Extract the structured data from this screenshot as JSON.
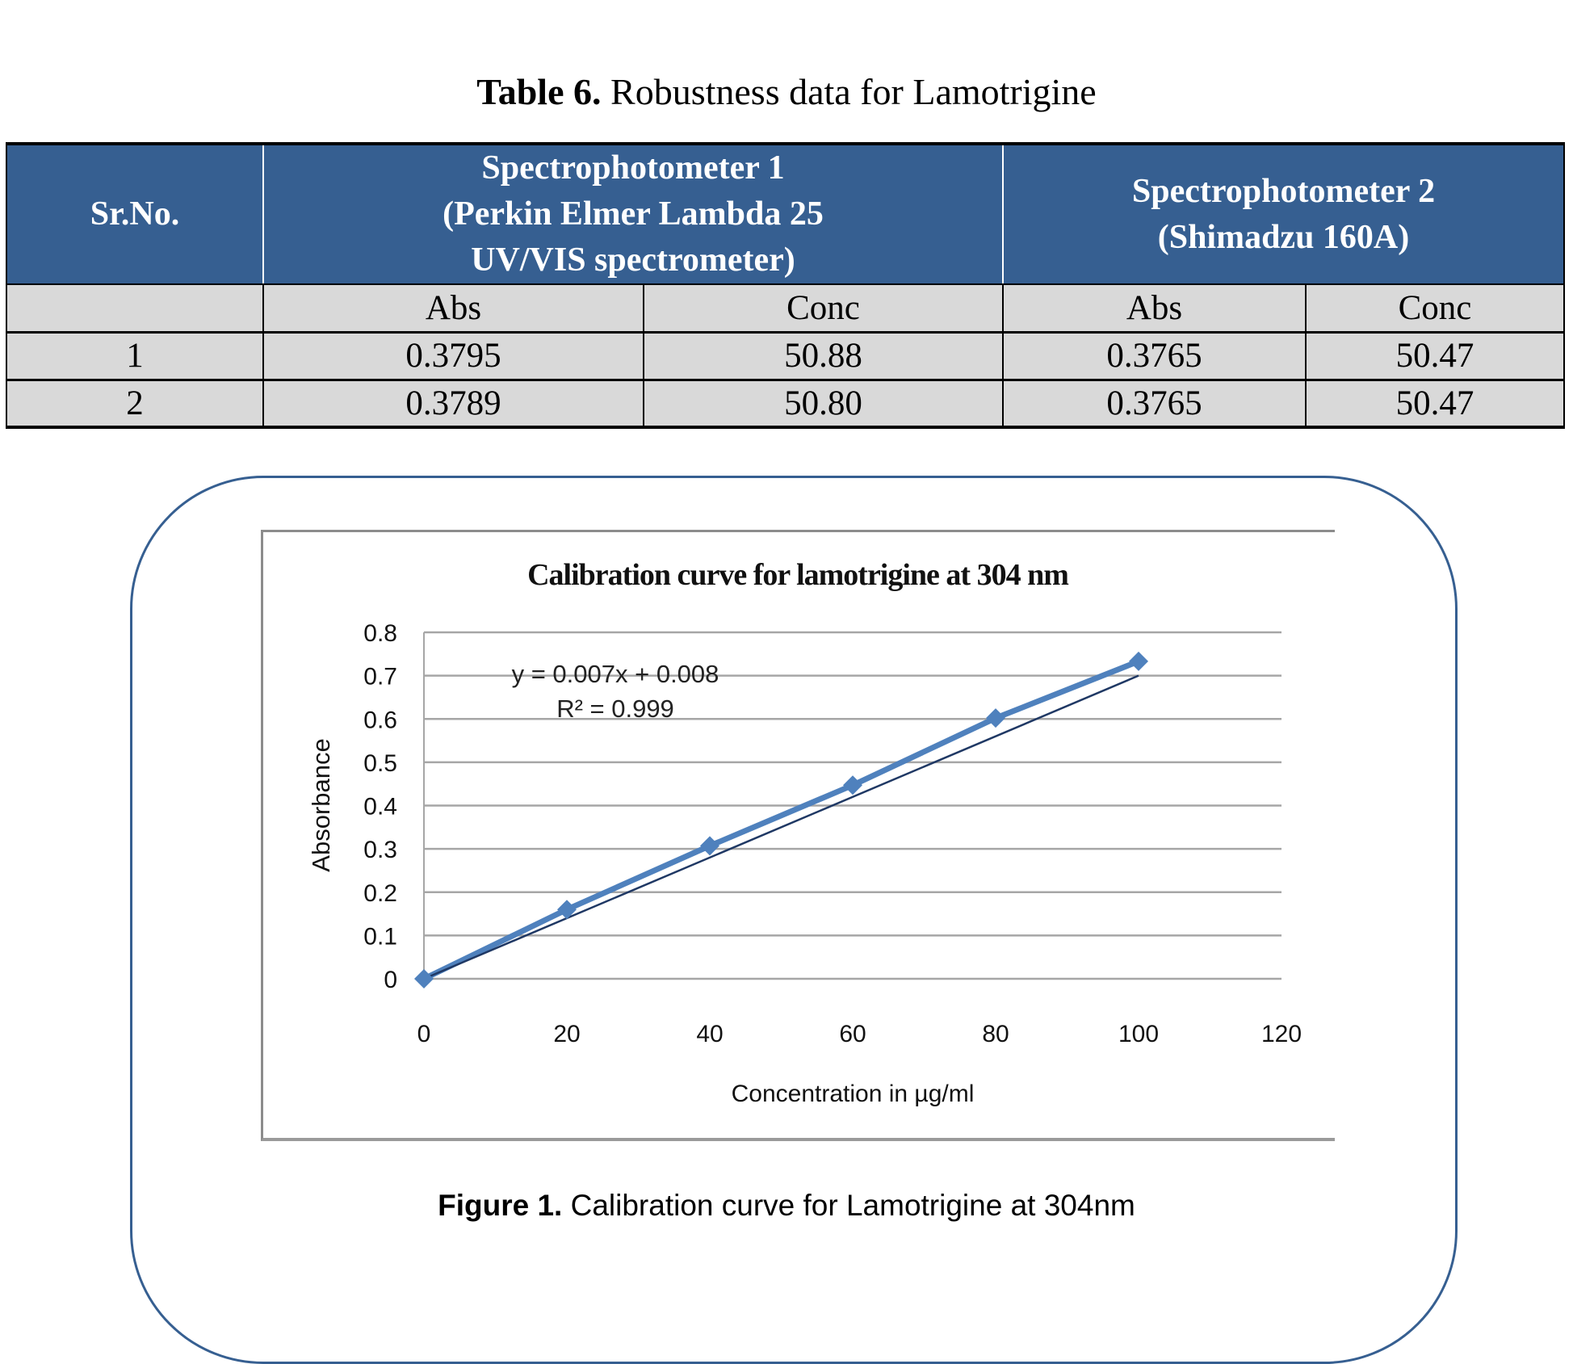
{
  "table": {
    "title_bold": "Table 6.",
    "title_rest": " Robustness data for Lamotrigine",
    "header": {
      "srno": "Sr.No.",
      "spec1_line1": "Spectrophotometer 1",
      "spec1_line2": "(Perkin Elmer Lambda 25",
      "spec1_line3": "UV/VIS spectrometer)",
      "spec2_line1": "Spectrophotometer  2",
      "spec2_line2": "(Shimadzu 160A)"
    },
    "subheader": [
      "",
      "Abs",
      "Conc",
      "Abs",
      "Conc"
    ],
    "rows": [
      [
        "1",
        "0.3795",
        "50.88",
        "0.3765",
        "50.47"
      ],
      [
        "2",
        "0.3789",
        "50.80",
        "0.3765",
        "50.47"
      ]
    ],
    "colors": {
      "header_bg": "#365F91",
      "cell_bg": "#D9D9D9"
    }
  },
  "figure": {
    "caption_bold": "Figure 1.",
    "caption_rest": " Calibration curve for Lamotrigine at 304nm",
    "border_color": "#365F91"
  },
  "chart_data": {
    "type": "scatter",
    "title": "Calibration curve for lamotrigine at 304 nm",
    "xlabel": "Concentration in µg/ml",
    "ylabel": "Absorbance",
    "x": [
      0,
      20,
      40,
      60,
      80,
      100
    ],
    "series": [
      {
        "name": "Absorbance",
        "values": [
          0.0,
          0.16,
          0.307,
          0.447,
          0.602,
          0.733
        ],
        "color": "#4F81BD",
        "marker": "diamond"
      }
    ],
    "trendline": {
      "type": "linear",
      "equation": "y = 0.007x + 0.008",
      "r_squared_label": "R² = 0.999",
      "slope": 0.007,
      "intercept": 0.008,
      "color": "#1F3864"
    },
    "xlim": [
      0,
      120
    ],
    "ylim": [
      0,
      0.8
    ],
    "xticks": [
      "0",
      "20",
      "40",
      "60",
      "80",
      "100",
      "120"
    ],
    "yticks": [
      "0",
      "0.1",
      "0.2",
      "0.3",
      "0.4",
      "0.5",
      "0.6",
      "0.7",
      "0.8"
    ],
    "grid": "horizontal",
    "legend": "none"
  }
}
